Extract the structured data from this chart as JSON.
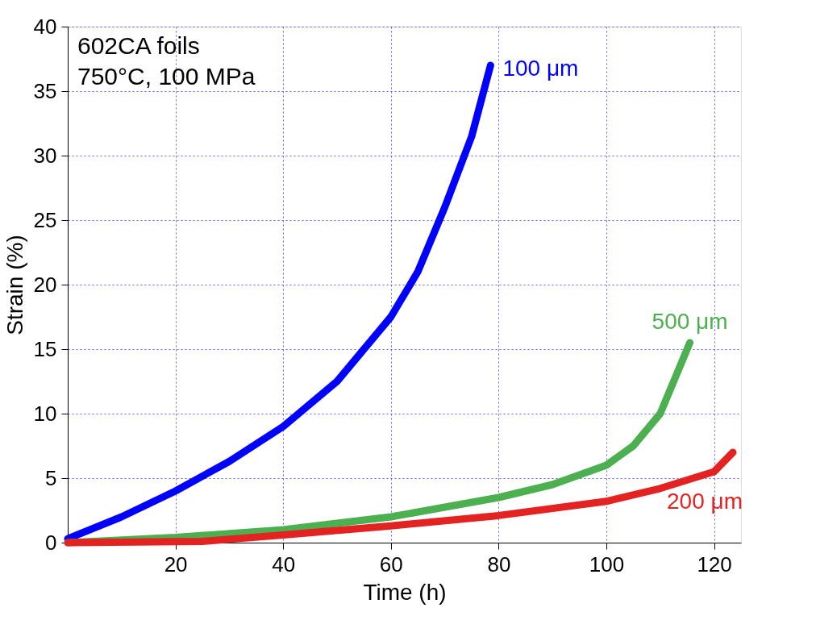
{
  "chart_data": {
    "type": "line",
    "xlabel": "Time (h)",
    "ylabel": "Strain (%)",
    "annotations": [
      "602CA foils",
      "750°C, 100 MPa"
    ],
    "xlim": [
      0,
      125
    ],
    "xticks": [
      20,
      40,
      60,
      80,
      100,
      120
    ],
    "ylim": [
      0,
      40
    ],
    "yticks": [
      0,
      5,
      10,
      15,
      20,
      25,
      30,
      35,
      40
    ],
    "grid": true,
    "line_style": "solid",
    "series": [
      {
        "name": "100 μm",
        "color": "#0000ff",
        "x": [
          0,
          10,
          20,
          30,
          40,
          50,
          60,
          65,
          70,
          75,
          78.5
        ],
        "values": [
          0.3,
          2,
          4,
          6.3,
          9,
          12.5,
          17.5,
          21,
          26,
          31.5,
          37
        ]
      },
      {
        "name": "500 μm",
        "color": "#4caf50",
        "x": [
          0,
          20,
          40,
          60,
          80,
          90,
          100,
          105,
          110,
          113,
          115.5
        ],
        "values": [
          0,
          0.4,
          1,
          2,
          3.5,
          4.5,
          6,
          7.5,
          10,
          13,
          15.5
        ]
      },
      {
        "name": "200 μm",
        "color": "#e32222",
        "x": [
          0,
          25,
          40,
          60,
          80,
          100,
          110,
          120,
          123.5
        ],
        "values": [
          0,
          0.1,
          0.6,
          1.3,
          2.1,
          3.2,
          4.2,
          5.5,
          7
        ]
      }
    ]
  }
}
